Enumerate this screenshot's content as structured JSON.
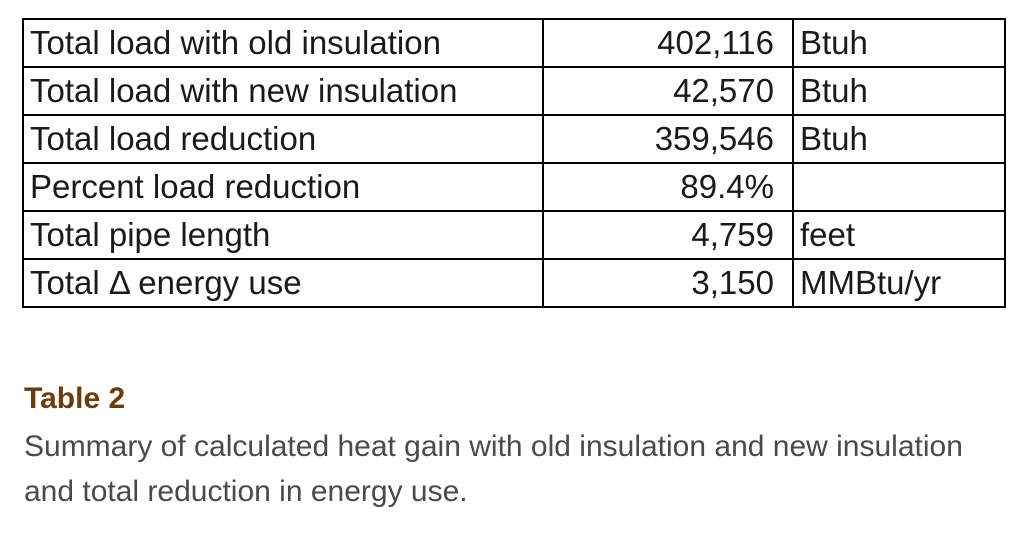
{
  "table": {
    "rows": [
      {
        "label": "Total load with old insulation",
        "value": "402,116",
        "unit": "Btuh"
      },
      {
        "label": "Total load with new insulation",
        "value": "42,570",
        "unit": "Btuh"
      },
      {
        "label": "Total load reduction",
        "value": "359,546",
        "unit": "Btuh"
      },
      {
        "label": "Percent load reduction",
        "value": "89.4%",
        "unit": ""
      },
      {
        "label": "Total pipe length",
        "value": "4,759",
        "unit": "feet"
      },
      {
        "label": "Total Δ energy use",
        "value": "3,150",
        "unit": "MMBtu/yr"
      }
    ]
  },
  "caption": {
    "title": "Table 2",
    "text": "Summary of calculated heat gain with old insulation and new insulation and total reduction in energy use."
  },
  "colors": {
    "caption_title": "#6b3d0e",
    "caption_text": "#4a4a4a",
    "border": "#000000"
  }
}
